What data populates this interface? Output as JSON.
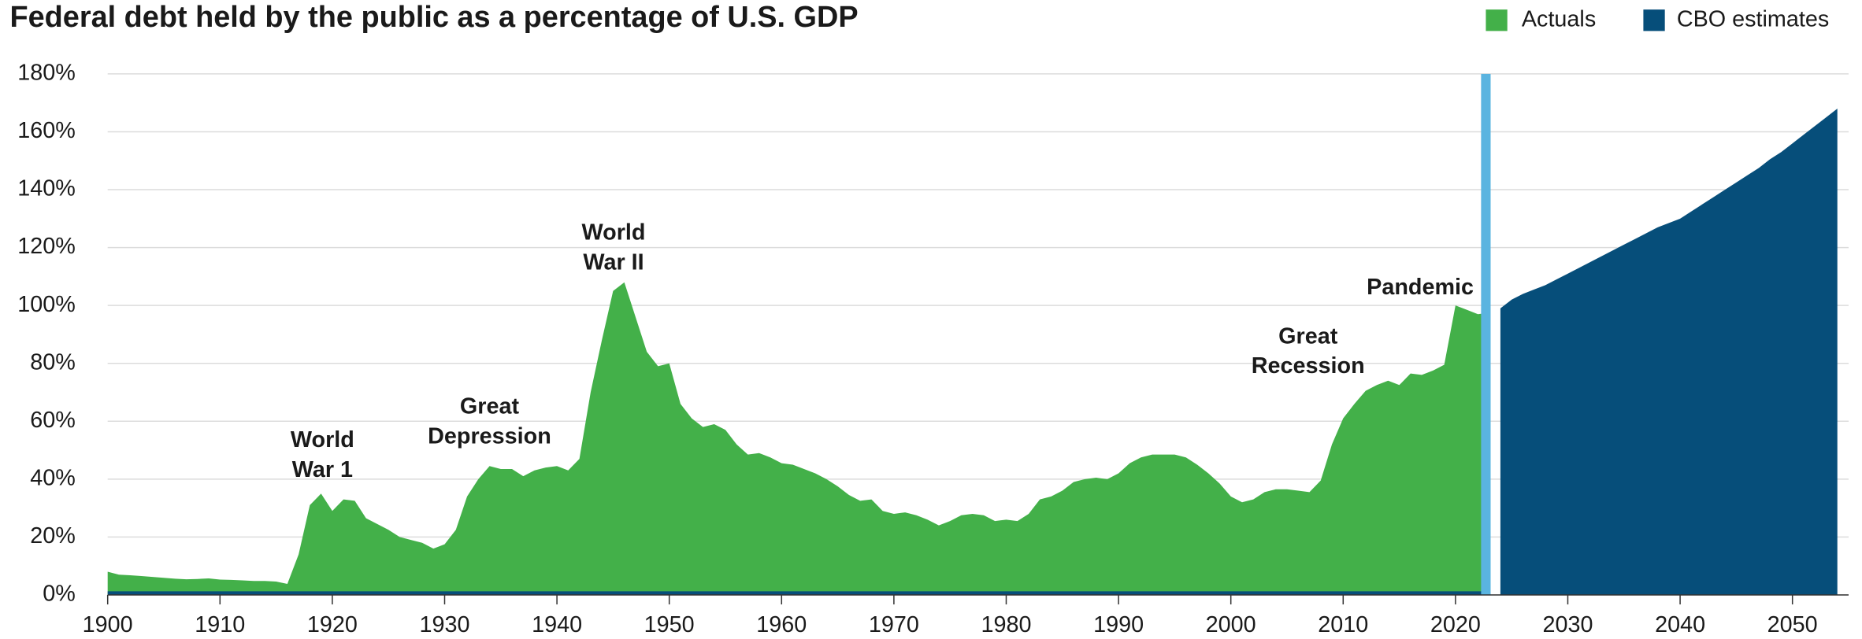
{
  "chart_data": {
    "type": "area",
    "title": "Federal debt held by the public as a percentage of U.S. GDP",
    "xlim": [
      1900,
      2055
    ],
    "xticks": [
      1900,
      1910,
      1920,
      1930,
      1940,
      1950,
      1960,
      1970,
      1980,
      1990,
      2000,
      2010,
      2020,
      2030,
      2040,
      2050
    ],
    "ylim": [
      0,
      180
    ],
    "yticks": [
      {
        "value": 0,
        "label": "0%"
      },
      {
        "value": 20,
        "label": "20%"
      },
      {
        "value": 40,
        "label": "40%"
      },
      {
        "value": 60,
        "label": "60%"
      },
      {
        "value": 80,
        "label": "80%"
      },
      {
        "value": 100,
        "label": "100%"
      },
      {
        "value": 120,
        "label": "120%"
      },
      {
        "value": 140,
        "label": "140%"
      },
      {
        "value": 160,
        "label": "160%"
      },
      {
        "value": 180,
        "label": "180%"
      }
    ],
    "grid": true,
    "legend": "top-right",
    "series": [
      {
        "name": "Actuals",
        "color": "#43b049",
        "x": [
          1900,
          1901,
          1902,
          1903,
          1904,
          1905,
          1906,
          1907,
          1908,
          1909,
          1910,
          1911,
          1912,
          1913,
          1914,
          1915,
          1916,
          1917,
          1918,
          1919,
          1920,
          1921,
          1922,
          1923,
          1924,
          1925,
          1926,
          1927,
          1928,
          1929,
          1930,
          1931,
          1932,
          1933,
          1934,
          1935,
          1936,
          1937,
          1938,
          1939,
          1940,
          1941,
          1942,
          1943,
          1944,
          1945,
          1946,
          1947,
          1948,
          1949,
          1950,
          1951,
          1952,
          1953,
          1954,
          1955,
          1956,
          1957,
          1958,
          1959,
          1960,
          1961,
          1962,
          1963,
          1964,
          1965,
          1966,
          1967,
          1968,
          1969,
          1970,
          1971,
          1972,
          1973,
          1974,
          1975,
          1976,
          1977,
          1978,
          1979,
          1980,
          1981,
          1982,
          1983,
          1984,
          1985,
          1986,
          1987,
          1988,
          1989,
          1990,
          1991,
          1992,
          1993,
          1994,
          1995,
          1996,
          1997,
          1998,
          1999,
          2000,
          2001,
          2002,
          2003,
          2004,
          2005,
          2006,
          2007,
          2008,
          2009,
          2010,
          2011,
          2012,
          2013,
          2014,
          2015,
          2016,
          2017,
          2018,
          2019,
          2020,
          2021,
          2022,
          2023
        ],
        "values": [
          8,
          7,
          6.8,
          6.5,
          6.2,
          5.9,
          5.6,
          5.4,
          5.5,
          5.7,
          5.3,
          5.2,
          5,
          4.8,
          4.8,
          4.6,
          3.8,
          14,
          31,
          35,
          29,
          33,
          32.5,
          26.5,
          24.5,
          22.5,
          20,
          19,
          18,
          16,
          17.5,
          22.5,
          34,
          40,
          44.5,
          43.5,
          43.5,
          41,
          43,
          44,
          44.5,
          43,
          47,
          70,
          88,
          105,
          108,
          96,
          84,
          79,
          80,
          66,
          61,
          58,
          59,
          57,
          52,
          48.5,
          49,
          47.5,
          45.5,
          45,
          43.5,
          42,
          40,
          37.5,
          34.5,
          32.5,
          33,
          29,
          28,
          28.5,
          27.5,
          26,
          24,
          25.5,
          27.5,
          28,
          27.5,
          25.5,
          26,
          25.5,
          28,
          33,
          34,
          36,
          39,
          40,
          40.5,
          40,
          42,
          45.5,
          47.5,
          48.5,
          48.5,
          48.5,
          47.5,
          45,
          42,
          38.5,
          34,
          32,
          33,
          35.5,
          36.5,
          36.5,
          36,
          35.5,
          39.5,
          52,
          61,
          66,
          70.5,
          72.5,
          74,
          72.5,
          76.5,
          76,
          77.5,
          79.5,
          100,
          98.5,
          97,
          97.5
        ]
      },
      {
        "name": "CBO estimates",
        "color": "#064e7a",
        "x": [
          2024,
          2025,
          2026,
          2027,
          2028,
          2029,
          2030,
          2031,
          2032,
          2033,
          2034,
          2035,
          2036,
          2037,
          2038,
          2039,
          2040,
          2041,
          2042,
          2043,
          2044,
          2045,
          2046,
          2047,
          2048,
          2049,
          2050,
          2051,
          2052,
          2053,
          2054
        ],
        "values": [
          99,
          102,
          104,
          105.5,
          107,
          109,
          111,
          113,
          115,
          117,
          119,
          121,
          123,
          125,
          127,
          128.5,
          130,
          132.5,
          135,
          137.5,
          140,
          142.5,
          145,
          147.5,
          150.5,
          153,
          156,
          159,
          162,
          165,
          168
        ]
      }
    ],
    "annotations": [
      {
        "lines": [
          "World",
          "War 1"
        ]
      },
      {
        "lines": [
          "Great",
          "Depression"
        ]
      },
      {
        "lines": [
          "World",
          "War II"
        ]
      },
      {
        "lines": [
          "Great",
          "Recession"
        ]
      },
      {
        "lines": [
          "Pandemic"
        ]
      }
    ]
  }
}
